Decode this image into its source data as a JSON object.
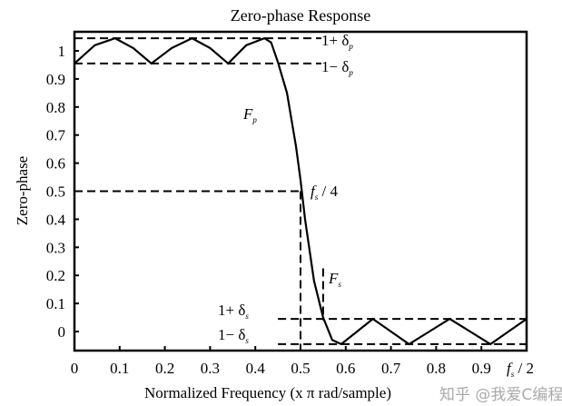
{
  "chart_data": {
    "type": "line",
    "title": "Zero-phase Response",
    "xlabel": "Normalized Frequency (x π rad/sample)",
    "ylabel": "Zero-phase",
    "xlim": [
      0,
      1
    ],
    "ylim": [
      -0.068,
      1.068
    ],
    "grid": false,
    "xticks": [
      "0",
      "0.1",
      "0.2",
      "0.3",
      "0.4",
      "0.5",
      "0.6",
      "0.7",
      "0.8",
      "0.9"
    ],
    "yticks": [
      "0",
      "0.1",
      "0.2",
      "0.3",
      "0.4",
      "0.5",
      "0.6",
      "0.7",
      "0.8",
      "0.9",
      "1"
    ],
    "series": [
      {
        "x": [
          0,
          0.045,
          0.09,
          0.13,
          0.17,
          0.215,
          0.26,
          0.3,
          0.34,
          0.38,
          0.42,
          0.435,
          0.45,
          0.47,
          0.49,
          0.5,
          0.51,
          0.53,
          0.55,
          0.57,
          0.59,
          0.625,
          0.66,
          0.7,
          0.74,
          0.785,
          0.83,
          0.875,
          0.92,
          0.96,
          1.0
        ],
        "y": [
          0.955,
          1.02,
          1.045,
          1.01,
          0.955,
          1.01,
          1.045,
          1.01,
          0.955,
          1.02,
          1.045,
          1.03,
          0.96,
          0.85,
          0.66,
          0.54,
          0.4,
          0.18,
          0.05,
          -0.03,
          -0.045,
          0.0,
          0.045,
          0.0,
          -0.045,
          0.0,
          0.045,
          0.0,
          -0.045,
          0.0,
          0.045
        ]
      }
    ],
    "reference_lines": [
      {
        "x": [
          0,
          0.546
        ],
        "y": [
          1.045,
          1.045
        ]
      },
      {
        "x": [
          0,
          0.546
        ],
        "y": [
          0.955,
          0.955
        ]
      },
      {
        "x": [
          0,
          0.5
        ],
        "y": [
          0.5,
          0.5
        ]
      },
      {
        "x": [
          0.5,
          0.5
        ],
        "y": [
          0.5,
          -0.068
        ]
      },
      {
        "x": [
          0.55,
          0.55
        ],
        "y": [
          0.225,
          0.04
        ]
      },
      {
        "x": [
          0.45,
          1
        ],
        "y": [
          0.045,
          0.045
        ]
      },
      {
        "x": [
          0.45,
          1
        ],
        "y": [
          -0.045,
          -0.045
        ]
      }
    ],
    "annotations": {
      "pass_upper": {
        "main": "1+ δ",
        "sub": "p"
      },
      "pass_lower": {
        "main": "1− δ",
        "sub": "p"
      },
      "fp": {
        "main": "F",
        "sub": "p"
      },
      "fs4": {
        "main": "f",
        "sub": "s",
        "tail": "/ 4"
      },
      "fs": {
        "main": "F",
        "sub": "s"
      },
      "stop_upper": {
        "main": "1+ δ",
        "sub": "s"
      },
      "stop_lower": {
        "main": "1− δ",
        "sub": "s"
      },
      "fs2": {
        "main": "f",
        "sub": "s",
        "tail": "/ 2"
      }
    }
  },
  "watermark": "知乎 @我爱C编程"
}
